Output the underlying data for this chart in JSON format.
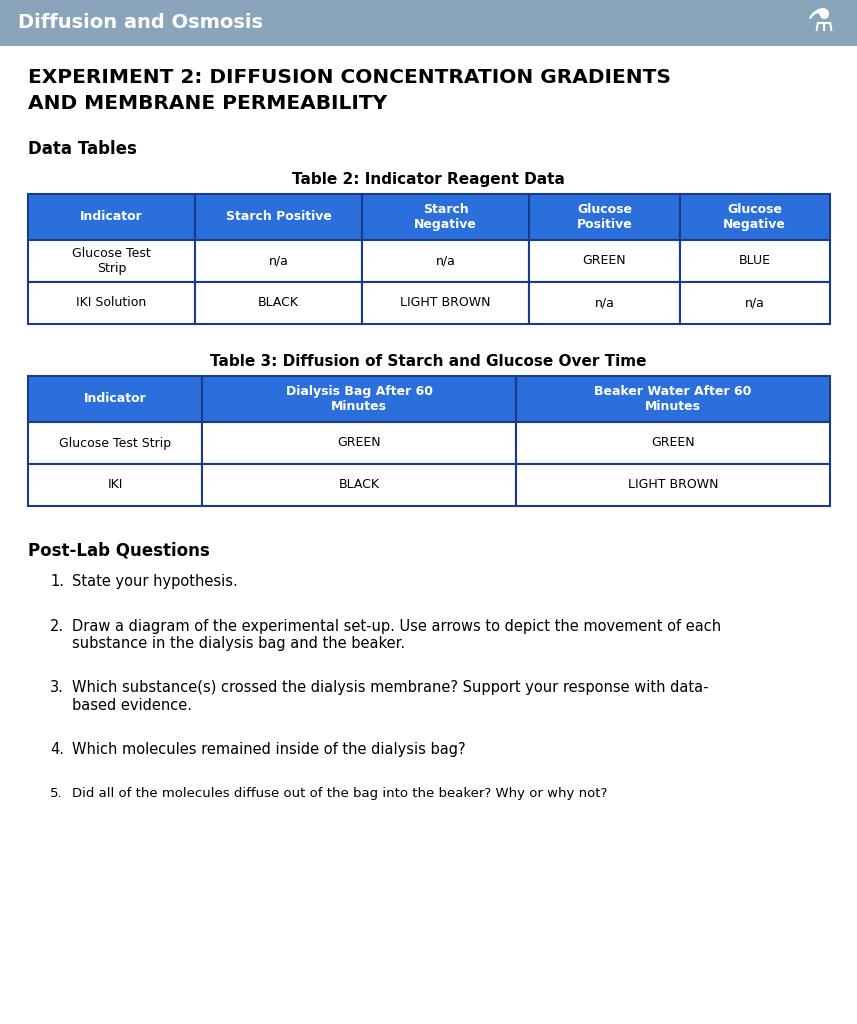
{
  "header_bg": "#8aa4bc",
  "header_text": "Diffusion and Osmosis",
  "header_text_color": "#ffffff",
  "page_bg": "#ffffff",
  "title_line1": "EXPERIMENT 2: DIFFUSION CONCENTRATION GRADIENTS",
  "title_line2": "AND MEMBRANE PERMEABILITY",
  "section_label": "Data Tables",
  "table2_title": "Table 2: Indicator Reagent Data",
  "table2_header": [
    "Indicator",
    "Starch Positive",
    "Starch\nNegative",
    "Glucose\nPositive",
    "Glucose\nNegative"
  ],
  "table2_rows": [
    [
      "Glucose Test\nStrip",
      "n/a",
      "n/a",
      "GREEN",
      "BLUE"
    ],
    [
      "IKI Solution",
      "BLACK",
      "LIGHT BROWN",
      "n/a",
      "n/a"
    ]
  ],
  "table3_title": "Table 3: Diffusion of Starch and Glucose Over Time",
  "table3_header": [
    "Indicator",
    "Dialysis Bag After 60\nMinutes",
    "Beaker Water After 60\nMinutes"
  ],
  "table3_rows": [
    [
      "Glucose Test Strip",
      "GREEN",
      "GREEN"
    ],
    [
      "IKI",
      "BLACK",
      "LIGHT BROWN"
    ]
  ],
  "postlab_title": "Post-Lab Questions",
  "questions": [
    {
      "num": "1.",
      "text": "State your hypothesis."
    },
    {
      "num": "2.",
      "text": "Draw a diagram of the experimental set-up. Use arrows to depict the movement of each\nsubstance in the dialysis bag and the beaker."
    },
    {
      "num": "3.",
      "text": "Which substance(s) crossed the dialysis membrane? Support your response with data-\nbased evidence."
    },
    {
      "num": "4.",
      "text": "Which molecules remained inside of the dialysis bag?"
    },
    {
      "num": "5.",
      "text": "Did all of the molecules diffuse out of the bag into the beaker? Why or why not?"
    }
  ],
  "table_header_bg": "#2a6fdb",
  "table_header_text": "#ffffff",
  "table_border": "#1a3a8a",
  "table_cell_bg": "#ffffff",
  "table_cell_text": "#000000",
  "q5_smaller": true
}
